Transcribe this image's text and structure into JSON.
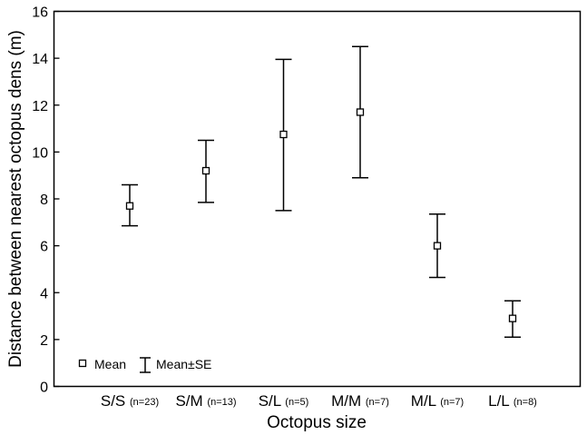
{
  "chart_data": {
    "type": "scatter",
    "subtype": "mean-with-error-bars",
    "title": "",
    "xlabel": "Octopus size",
    "ylabel": "Distance between nearest octopus dens (m)",
    "ylim": [
      0,
      16
    ],
    "yticks": [
      0,
      2,
      4,
      6,
      8,
      10,
      12,
      14,
      16
    ],
    "yticks_labels": [
      "0",
      "2",
      "4",
      "6",
      "8",
      "10",
      "12",
      "14",
      "16"
    ],
    "grid": false,
    "legend_position": "bottom-left",
    "categories": [
      {
        "label": "S/S",
        "n": "(n=23)",
        "mean": 7.7,
        "lower": 6.85,
        "upper": 8.6
      },
      {
        "label": "S/M",
        "n": "(n=13)",
        "mean": 9.2,
        "lower": 7.85,
        "upper": 10.5
      },
      {
        "label": "S/L",
        "n": "(n=5)",
        "mean": 10.75,
        "lower": 7.5,
        "upper": 13.95
      },
      {
        "label": "M/M",
        "n": "(n=7)",
        "mean": 11.7,
        "lower": 8.9,
        "upper": 14.5
      },
      {
        "label": "M/L",
        "n": "(n=7)",
        "mean": 6.0,
        "lower": 4.65,
        "upper": 7.35
      },
      {
        "label": "L/L",
        "n": "(n=8)",
        "mean": 2.9,
        "lower": 2.1,
        "upper": 3.65
      }
    ],
    "legend": {
      "mean_label": "Mean",
      "se_label": "Mean±SE"
    },
    "colors": {
      "ink": "#000000",
      "marker_fill": "#ffffff",
      "background": "#ffffff"
    }
  }
}
